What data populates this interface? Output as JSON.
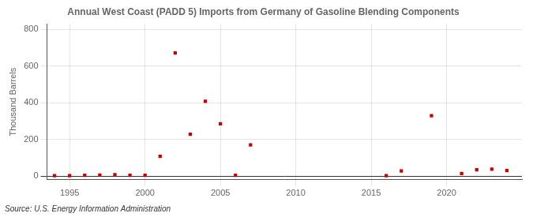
{
  "chart_data": {
    "type": "scatter",
    "title": "Annual West Coast (PADD 5) Imports from Germany of Gasoline Blending Components",
    "ylabel": "Thousand Barrels",
    "source": "Source: U.S. Energy Information Administration",
    "x": [
      1994,
      1995,
      1996,
      1997,
      1998,
      1999,
      2000,
      2001,
      2002,
      2003,
      2004,
      2005,
      2006,
      2007,
      2016,
      2017,
      2019,
      2021,
      2022,
      2023,
      2024
    ],
    "values": [
      2,
      2,
      4,
      6,
      8,
      4,
      4,
      108,
      672,
      228,
      408,
      285,
      4,
      170,
      2,
      28,
      330,
      14,
      35,
      38,
      30
    ],
    "color": "#cc0000",
    "marker": "square",
    "xlim": [
      1993.5,
      2025
    ],
    "ylim": [
      -20,
      830
    ],
    "xticks": [
      1995,
      2000,
      2005,
      2010,
      2015,
      2020
    ],
    "yticks": [
      0,
      200,
      400,
      600,
      800
    ],
    "grid": true
  }
}
